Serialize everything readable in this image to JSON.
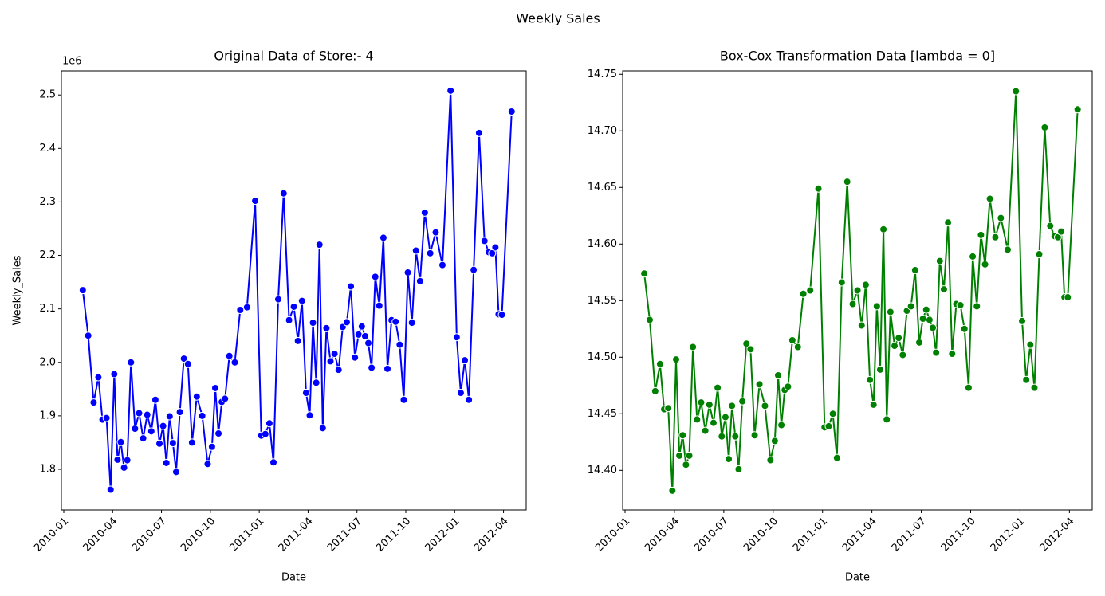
{
  "title": "Weekly Sales",
  "chart_data": [
    {
      "type": "line",
      "title": "Original Data of Store:- 4",
      "xlabel": "Date",
      "ylabel": "Weekly_Sales",
      "offset_text": "1e6",
      "color": "#0000ff",
      "x": [
        "2010-02",
        "2010-02",
        "2010-02",
        "2010-03",
        "2010-03",
        "2010-03",
        "2010-03",
        "2010-04",
        "2010-04",
        "2010-04",
        "2010-04",
        "2010-04",
        "2010-05",
        "2010-05",
        "2010-05",
        "2010-05",
        "2010-06",
        "2010-06",
        "2010-06",
        "2010-06",
        "2010-07",
        "2010-07",
        "2010-07",
        "2010-07",
        "2010-07",
        "2010-08",
        "2010-08",
        "2010-08",
        "2010-08",
        "2010-09",
        "2010-09",
        "2010-09",
        "2010-10",
        "2010-10",
        "2010-10",
        "2010-10",
        "2010-10",
        "2010-11",
        "2010-11",
        "2010-11",
        "2010-12",
        "2010-12",
        "2011-01",
        "2011-01",
        "2011-01",
        "2011-01",
        "2011-02",
        "2011-02",
        "2011-02",
        "2011-03",
        "2011-03",
        "2011-03",
        "2011-03",
        "2011-04",
        "2011-04",
        "2011-04",
        "2011-04",
        "2011-04",
        "2011-05",
        "2011-05",
        "2011-05",
        "2011-05",
        "2011-06",
        "2011-06",
        "2011-06",
        "2011-06",
        "2011-07",
        "2011-07",
        "2011-07",
        "2011-07",
        "2011-07",
        "2011-08",
        "2011-08",
        "2011-08",
        "2011-08",
        "2011-09",
        "2011-09",
        "2011-09",
        "2011-09",
        "2011-10",
        "2011-10",
        "2011-10",
        "2011-10",
        "2011-11",
        "2011-11",
        "2011-11",
        "2011-12",
        "2011-12",
        "2012-01",
        "2012-01",
        "2012-01",
        "2012-01",
        "2012-02",
        "2012-02",
        "2012-02",
        "2012-03",
        "2012-03",
        "2012-03",
        "2012-03",
        "2012-03",
        "2012-04"
      ],
      "values": [
        2.135,
        2.05,
        1.925,
        1.972,
        1.893,
        1.896,
        1.762,
        1.978,
        1.818,
        1.851,
        1.803,
        1.817,
        2.0,
        1.876,
        1.905,
        1.858,
        1.902,
        1.871,
        1.93,
        1.848,
        1.881,
        1.812,
        1.899,
        1.849,
        1.795,
        1.907,
        2.007,
        1.997,
        1.85,
        1.936,
        1.9,
        1.81,
        1.842,
        1.952,
        1.867,
        1.926,
        1.932,
        2.012,
        2.0,
        2.098,
        2.103,
        2.302,
        1.863,
        1.866,
        1.886,
        1.813,
        2.118,
        2.316,
        2.079,
        2.104,
        2.04,
        2.115,
        1.943,
        1.901,
        2.074,
        1.962,
        2.22,
        1.877,
        2.064,
        2.002,
        2.016,
        1.986,
        2.066,
        2.075,
        2.142,
        2.009,
        2.052,
        2.067,
        2.049,
        2.036,
        1.99,
        2.16,
        2.106,
        2.233,
        1.988,
        2.079,
        2.076,
        2.033,
        1.93,
        2.168,
        2.074,
        2.209,
        2.152,
        2.28,
        2.204,
        2.243,
        2.182,
        2.508,
        2.047,
        1.943,
        2.004,
        1.93,
        2.173,
        2.429,
        2.227,
        2.206,
        2.204,
        2.215,
        2.09,
        2.089,
        2.469
      ],
      "xlim": [
        "2010-01",
        "2012-05"
      ],
      "xticks": [
        "2010-01",
        "2010-04",
        "2010-07",
        "2010-10",
        "2011-01",
        "2011-04",
        "2011-07",
        "2011-10",
        "2012-01",
        "2012-04"
      ],
      "ylim": [
        1.724,
        2.545
      ],
      "yticks": [
        1.8,
        1.9,
        {
          "value": 2,
          "label": "2.0"
        },
        2.1,
        2.2,
        2.3,
        2.4,
        2.5
      ]
    },
    {
      "type": "line",
      "title": "Box-Cox Transformation Data [lambda = 0]",
      "xlabel": "Date",
      "color": "#008000",
      "x": [
        "2010-02",
        "2010-02",
        "2010-02",
        "2010-03",
        "2010-03",
        "2010-03",
        "2010-03",
        "2010-04",
        "2010-04",
        "2010-04",
        "2010-04",
        "2010-04",
        "2010-05",
        "2010-05",
        "2010-05",
        "2010-05",
        "2010-06",
        "2010-06",
        "2010-06",
        "2010-06",
        "2010-07",
        "2010-07",
        "2010-07",
        "2010-07",
        "2010-07",
        "2010-08",
        "2010-08",
        "2010-08",
        "2010-08",
        "2010-09",
        "2010-09",
        "2010-09",
        "2010-10",
        "2010-10",
        "2010-10",
        "2010-10",
        "2010-10",
        "2010-11",
        "2010-11",
        "2010-11",
        "2010-12",
        "2010-12",
        "2011-01",
        "2011-01",
        "2011-01",
        "2011-01",
        "2011-02",
        "2011-02",
        "2011-02",
        "2011-03",
        "2011-03",
        "2011-03",
        "2011-03",
        "2011-04",
        "2011-04",
        "2011-04",
        "2011-04",
        "2011-04",
        "2011-05",
        "2011-05",
        "2011-05",
        "2011-05",
        "2011-06",
        "2011-06",
        "2011-06",
        "2011-06",
        "2011-07",
        "2011-07",
        "2011-07",
        "2011-07",
        "2011-07",
        "2011-08",
        "2011-08",
        "2011-08",
        "2011-08",
        "2011-09",
        "2011-09",
        "2011-09",
        "2011-09",
        "2011-10",
        "2011-10",
        "2011-10",
        "2011-10",
        "2011-11",
        "2011-11",
        "2011-11",
        "2011-12",
        "2011-12",
        "2012-01",
        "2012-01",
        "2012-01",
        "2012-01",
        "2012-02",
        "2012-02",
        "2012-02",
        "2012-03",
        "2012-03",
        "2012-03",
        "2012-03",
        "2012-03",
        "2012-04"
      ],
      "values": [
        14.574,
        14.533,
        14.47,
        14.494,
        14.454,
        14.455,
        14.382,
        14.498,
        14.413,
        14.431,
        14.405,
        14.413,
        14.509,
        14.445,
        14.46,
        14.435,
        14.458,
        14.442,
        14.473,
        14.43,
        14.447,
        14.41,
        14.457,
        14.43,
        14.401,
        14.461,
        14.512,
        14.507,
        14.431,
        14.476,
        14.457,
        14.409,
        14.426,
        14.484,
        14.44,
        14.471,
        14.474,
        14.515,
        14.509,
        14.556,
        14.559,
        14.649,
        14.438,
        14.439,
        14.45,
        14.411,
        14.566,
        14.655,
        14.547,
        14.559,
        14.528,
        14.564,
        14.48,
        14.458,
        14.545,
        14.489,
        14.613,
        14.445,
        14.54,
        14.51,
        14.517,
        14.502,
        14.541,
        14.545,
        14.577,
        14.513,
        14.534,
        14.542,
        14.533,
        14.526,
        14.504,
        14.585,
        14.56,
        14.619,
        14.503,
        14.547,
        14.546,
        14.525,
        14.473,
        14.589,
        14.545,
        14.608,
        14.582,
        14.64,
        14.606,
        14.623,
        14.595,
        14.735,
        14.532,
        14.48,
        14.511,
        14.473,
        14.591,
        14.703,
        14.616,
        14.607,
        14.606,
        14.611,
        14.553,
        14.553,
        14.719
      ],
      "xlim": [
        "2010-01",
        "2012-05"
      ],
      "xticks": [
        "2010-01",
        "2010-04",
        "2010-07",
        "2010-10",
        "2011-01",
        "2011-04",
        "2011-07",
        "2011-10",
        "2012-01",
        "2012-04"
      ],
      "ylim": [
        14.365,
        14.753
      ],
      "yticks": [
        {
          "value": 14.4,
          "label": "14.40"
        },
        14.45,
        {
          "value": 14.5,
          "label": "14.50"
        },
        14.55,
        {
          "value": 14.6,
          "label": "14.60"
        },
        14.65,
        {
          "value": 14.7,
          "label": "14.70"
        },
        14.75
      ]
    }
  ]
}
